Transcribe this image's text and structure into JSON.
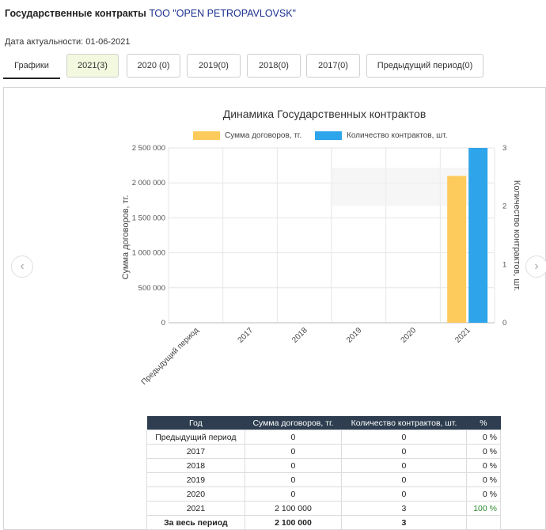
{
  "header": {
    "title": "Государственные контракты",
    "company": "ТОО \"OPEN PETROPAVLOVSK\""
  },
  "updated": "Дата актуальности: 01-06-2021",
  "tabs": [
    {
      "label": "Графики"
    },
    {
      "label": "2021(3)"
    },
    {
      "label": "2020 (0)"
    },
    {
      "label": "2019(0)"
    },
    {
      "label": "2018(0)"
    },
    {
      "label": "2017(0)"
    },
    {
      "label": "Предыдущий период(0)"
    }
  ],
  "nav": {
    "prev_icon": "chevron-left-icon",
    "next_icon": "chevron-right-icon"
  },
  "chart_data": {
    "type": "bar",
    "title": "Динамика Государственных контрактов",
    "categories": [
      "Предыдущий период",
      "2017",
      "2018",
      "2019",
      "2020",
      "2021"
    ],
    "series": [
      {
        "name": "Сумма договоров, тг.",
        "values": [
          0,
          0,
          0,
          0,
          0,
          2100000
        ],
        "color": "#fdcb5c",
        "axis": "left"
      },
      {
        "name": "Количество контрактов, шт.",
        "values": [
          0,
          0,
          0,
          0,
          0,
          3
        ],
        "color": "#2ea4ea",
        "axis": "right"
      }
    ],
    "ylabel": "Сумма договоров, тг.",
    "y2label": "Количество контрактов, шт.",
    "ylim": [
      0,
      2500000
    ],
    "y2lim": [
      0,
      3
    ],
    "yticks": [
      "0",
      "500 000",
      "1 000 000",
      "1 500 000",
      "2 000 000",
      "2 500 000"
    ],
    "y2ticks": [
      "0",
      "1",
      "2",
      "3"
    ],
    "grid": true,
    "legend": "top"
  },
  "table": {
    "headers": [
      "Год",
      "Сумма договоров, тг.",
      "Количество контрактов, шт.",
      "%"
    ],
    "rows": [
      [
        "Предыдущий период",
        "0",
        "0",
        "0 %"
      ],
      [
        "2017",
        "0",
        "0",
        "0 %"
      ],
      [
        "2018",
        "0",
        "0",
        "0 %"
      ],
      [
        "2019",
        "0",
        "0",
        "0 %"
      ],
      [
        "2020",
        "0",
        "0",
        "0 %"
      ],
      [
        "2021",
        "2 100 000",
        "3",
        "100 %"
      ]
    ],
    "total": [
      "За весь период",
      "2 100 000",
      "3",
      ""
    ]
  }
}
